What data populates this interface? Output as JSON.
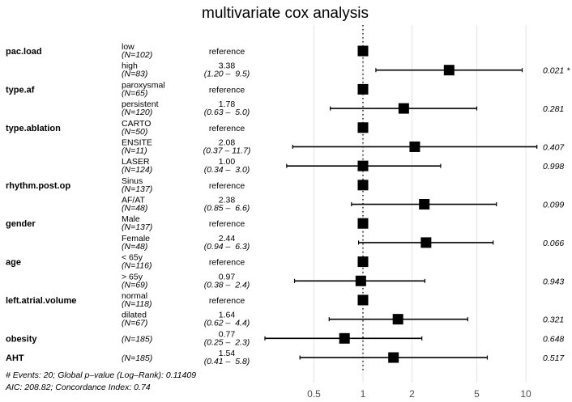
{
  "chart_data": {
    "type": "forest",
    "title": "multivariate cox analysis",
    "xscale": "log",
    "xlim": [
      0.25,
      12
    ],
    "xticks": [
      0.5,
      1,
      2,
      5,
      10
    ],
    "xtick_labels": [
      "0.5",
      "1",
      "2",
      "5",
      "10"
    ],
    "reference_line": 1,
    "grid": true,
    "rows": [
      {
        "variable": "pac.load",
        "level": "low",
        "n": "(N=102)",
        "hr": 1,
        "hr_text": "reference",
        "ci_text": "",
        "lower": null,
        "upper": null,
        "p": ""
      },
      {
        "variable": "",
        "level": "high",
        "n": "(N=83)",
        "hr": 3.38,
        "hr_text": "3.38",
        "ci_text": "(1.20 –  9.5)",
        "lower": 1.2,
        "upper": 9.5,
        "p": "0.021 *"
      },
      {
        "variable": "type.af",
        "level": "paroxysmal",
        "n": "(N=65)",
        "hr": 1,
        "hr_text": "reference",
        "ci_text": "",
        "lower": null,
        "upper": null,
        "p": ""
      },
      {
        "variable": "",
        "level": "persistent",
        "n": "(N=120)",
        "hr": 1.78,
        "hr_text": "1.78",
        "ci_text": "(0.63 –  5.0)",
        "lower": 0.63,
        "upper": 5.0,
        "p": "0.281"
      },
      {
        "variable": "type.ablation",
        "level": "CARTO",
        "n": "(N=50)",
        "hr": 1,
        "hr_text": "reference",
        "ci_text": "",
        "lower": null,
        "upper": null,
        "p": ""
      },
      {
        "variable": "",
        "level": "ENSITE",
        "n": "(N=11)",
        "hr": 2.08,
        "hr_text": "2.08",
        "ci_text": "(0.37 – 11.7)",
        "lower": 0.37,
        "upper": 11.7,
        "p": "0.407"
      },
      {
        "variable": "",
        "level": "LASER",
        "n": "(N=124)",
        "hr": 1.0,
        "hr_text": "1.00",
        "ci_text": "(0.34 –  3.0)",
        "lower": 0.34,
        "upper": 3.0,
        "p": "0.998"
      },
      {
        "variable": "rhythm.post.op",
        "level": "Sinus",
        "n": "(N=137)",
        "hr": 1,
        "hr_text": "reference",
        "ci_text": "",
        "lower": null,
        "upper": null,
        "p": ""
      },
      {
        "variable": "",
        "level": "AF/AT",
        "n": "(N=48)",
        "hr": 2.38,
        "hr_text": "2.38",
        "ci_text": "(0.85 –  6.6)",
        "lower": 0.85,
        "upper": 6.6,
        "p": "0.099"
      },
      {
        "variable": "gender",
        "level": "Male",
        "n": "(N=137)",
        "hr": 1,
        "hr_text": "reference",
        "ci_text": "",
        "lower": null,
        "upper": null,
        "p": ""
      },
      {
        "variable": "",
        "level": "Female",
        "n": "(N=48)",
        "hr": 2.44,
        "hr_text": "2.44",
        "ci_text": "(0.94 –  6.3)",
        "lower": 0.94,
        "upper": 6.3,
        "p": "0.066"
      },
      {
        "variable": "age",
        "level": "< 65y",
        "n": "(N=116)",
        "hr": 1,
        "hr_text": "reference",
        "ci_text": "",
        "lower": null,
        "upper": null,
        "p": ""
      },
      {
        "variable": "",
        "level": "> 65y",
        "n": "(N=69)",
        "hr": 0.97,
        "hr_text": "0.97",
        "ci_text": "(0.38 –  2.4)",
        "lower": 0.38,
        "upper": 2.4,
        "p": "0.943"
      },
      {
        "variable": "left.atrial.volume",
        "level": "normal",
        "n": "(N=118)",
        "hr": 1,
        "hr_text": "reference",
        "ci_text": "",
        "lower": null,
        "upper": null,
        "p": ""
      },
      {
        "variable": "",
        "level": "dilated",
        "n": "(N=67)",
        "hr": 1.64,
        "hr_text": "1.64",
        "ci_text": "(0.62 –  4.4)",
        "lower": 0.62,
        "upper": 4.4,
        "p": "0.321"
      },
      {
        "variable": "obesity",
        "level": "",
        "n": "(N=185)",
        "hr": 0.77,
        "hr_text": "0.77",
        "ci_text": "(0.25 –  2.3)",
        "lower": 0.25,
        "upper": 2.3,
        "p": "0.648"
      },
      {
        "variable": "AHT",
        "level": "",
        "n": "(N=185)",
        "hr": 1.54,
        "hr_text": "1.54",
        "ci_text": "(0.41 –  5.8)",
        "lower": 0.41,
        "upper": 5.8,
        "p": "0.517"
      }
    ],
    "footer": [
      "# Events: 20; Global p–value (Log–Rank): 0.11409",
      "AIC: 208.82; Concordance Index: 0.74"
    ],
    "colors": {
      "marker": "#000000",
      "grid": "#e5e5e5",
      "tick_text": "#4d4d4d"
    }
  }
}
